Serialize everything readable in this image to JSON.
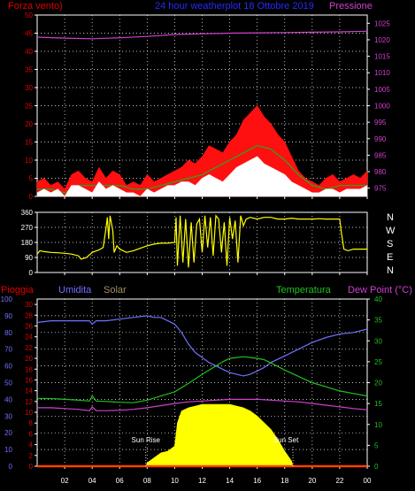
{
  "header": {
    "left_title": "Forza vento)",
    "center_title": "24 hour weatherplot 18 Ottobre 2019",
    "right_title": "Pressione",
    "colors": {
      "left": "#e00000",
      "center": "#2828ff",
      "right": "#d040d0"
    }
  },
  "compass_labels": [
    "N",
    "W",
    "S",
    "E",
    "N"
  ],
  "bottom_header": {
    "pioggia": "Pioggia",
    "umidita": "Umidita",
    "solar": "Solar",
    "temperatura": "Temperatura",
    "dew_point": "Dew Point (°C)",
    "colors": {
      "pioggia": "#e00000",
      "umidita": "#7070ff",
      "solar": "#a09060",
      "temperatura": "#20c020",
      "dew_point": "#d040d0"
    }
  },
  "annotations": {
    "sun_rise": "Sun Rise",
    "sun_set": "Sun Set"
  },
  "chart_data": [
    {
      "type": "line",
      "name_hint": "wind",
      "x_ticks": [
        "02",
        "04",
        "06",
        "08",
        "10",
        "12",
        "14",
        "16",
        "18",
        "20",
        "22",
        "00"
      ],
      "y_left_ticks": [
        0,
        5,
        10,
        15,
        20,
        25,
        30,
        35,
        40,
        45,
        50
      ],
      "y_right_ticks": [
        975,
        980,
        985,
        990,
        995,
        1000,
        1005,
        1010,
        1015,
        1020,
        1025
      ],
      "ylim_left": [
        0,
        50
      ],
      "ylim_right": [
        972.5,
        1027.5
      ],
      "xlim": [
        0,
        24
      ],
      "series": [
        {
          "name": "Pressione",
          "axis": "right",
          "color": "#d040d0",
          "x": [
            0,
            2,
            4,
            6,
            8,
            10,
            12,
            14,
            16,
            18,
            20,
            22,
            24
          ],
          "values": [
            1020.8,
            1020.5,
            1020.3,
            1020.6,
            1021.0,
            1021.6,
            1021.8,
            1022.0,
            1022.1,
            1022.2,
            1022.3,
            1022.4,
            1022.6
          ]
        },
        {
          "axis": "left",
          "color": "#ff1010",
          "fill": true,
          "x": [
            0,
            0.5,
            1,
            1.5,
            2,
            2.5,
            3,
            3.5,
            4,
            4.5,
            5,
            5.5,
            6,
            6.5,
            7,
            7.5,
            8,
            8.5,
            9,
            9.5,
            10,
            10.5,
            11,
            11.5,
            12,
            12.5,
            13,
            13.5,
            14,
            14.5,
            15,
            15.5,
            16,
            16.5,
            17,
            17.5,
            18,
            18.5,
            19,
            19.5,
            20,
            20.5,
            21,
            21.5,
            22,
            22.5,
            23,
            23.5,
            24
          ],
          "values": [
            4,
            5,
            3,
            4,
            2,
            6,
            7,
            5,
            4,
            8,
            5,
            7,
            6,
            3,
            4,
            3,
            6,
            4,
            5,
            6,
            7,
            8,
            10,
            9,
            11,
            14,
            13,
            12,
            15,
            17,
            21,
            23,
            25,
            22,
            20,
            17,
            15,
            11,
            7,
            5,
            4,
            3,
            5,
            6,
            4,
            5,
            6,
            5,
            7
          ]
        },
        {
          "axis": "left",
          "color": "#22aa22",
          "x": [
            0,
            1,
            2,
            3,
            4,
            5,
            6,
            7,
            8,
            9,
            10,
            11,
            12,
            13,
            14,
            15,
            16,
            17,
            18,
            19,
            20,
            21,
            22,
            23,
            24
          ],
          "values": [
            2,
            2,
            1,
            3,
            3,
            3,
            3,
            2,
            2,
            3,
            4,
            5,
            6,
            8,
            10,
            12,
            14,
            13,
            10,
            6,
            3,
            2,
            3,
            3,
            3
          ]
        },
        {
          "axis": "left",
          "color": "#ffffff",
          "fill": true,
          "x": [
            0,
            0.5,
            1,
            1.5,
            2,
            2.5,
            3,
            3.5,
            4,
            4.5,
            5,
            5.5,
            6,
            6.5,
            7,
            7.5,
            8,
            8.5,
            9,
            9.5,
            10,
            10.5,
            11,
            11.5,
            12,
            12.5,
            13,
            13.5,
            14,
            14.5,
            15,
            15.5,
            16,
            16.5,
            17,
            17.5,
            18,
            18.5,
            19,
            19.5,
            20,
            20.5,
            21,
            21.5,
            22,
            22.5,
            23,
            23.5,
            24
          ],
          "values": [
            1,
            2,
            1,
            2,
            0,
            3,
            3,
            2,
            1,
            4,
            2,
            3,
            2,
            1,
            1,
            0,
            2,
            1,
            2,
            3,
            3,
            4,
            4,
            3,
            5,
            6,
            5,
            4,
            6,
            8,
            9,
            10,
            11,
            9,
            8,
            7,
            6,
            4,
            3,
            2,
            1,
            1,
            2,
            2,
            1,
            2,
            2,
            2,
            3
          ]
        }
      ]
    },
    {
      "type": "line",
      "name_hint": "wind_direction",
      "x_ticks": [
        "02",
        "04",
        "06",
        "08",
        "10",
        "12",
        "14",
        "16",
        "18",
        "20",
        "22",
        "00"
      ],
      "y_ticks": [
        0,
        90,
        180,
        270,
        360
      ],
      "ylim": [
        0,
        360
      ],
      "xlim": [
        0,
        24
      ],
      "series": [
        {
          "color": "#ffff00",
          "x": [
            0,
            0.2,
            0.5,
            1,
            1.5,
            2,
            2.5,
            3,
            3.2,
            3.6,
            4,
            4.5,
            4.8,
            5,
            5.1,
            5.2,
            5.3,
            5.5,
            5.6,
            5.8,
            6,
            6.5,
            7,
            7.5,
            8,
            8.5,
            9,
            9.5,
            10,
            10.1,
            10.2,
            10.4,
            10.6,
            10.8,
            11,
            11.2,
            11.4,
            11.6,
            11.8,
            12,
            12.2,
            12.4,
            12.6,
            12.8,
            13,
            13.2,
            13.4,
            13.6,
            13.8,
            14,
            14.2,
            14.4,
            14.6,
            14.8,
            15,
            15.2,
            15.5,
            16,
            16.5,
            17,
            17.5,
            18,
            18.5,
            19,
            19.5,
            20,
            20.5,
            21,
            21.5,
            22,
            22.1,
            22.3,
            22.6,
            23,
            23.5,
            24
          ],
          "values": [
            110,
            130,
            125,
            120,
            118,
            115,
            110,
            100,
            80,
            90,
            120,
            135,
            150,
            260,
            330,
            200,
            340,
            250,
            120,
            160,
            140,
            120,
            130,
            145,
            160,
            170,
            175,
            175,
            180,
            330,
            40,
            340,
            60,
            320,
            30,
            300,
            60,
            290,
            320,
            120,
            340,
            150,
            330,
            100,
            340,
            320,
            120,
            300,
            40,
            330,
            200,
            310,
            60,
            340,
            280,
            320,
            330,
            320,
            330,
            330,
            320,
            320,
            325,
            320,
            320,
            320,
            322,
            320,
            320,
            320,
            250,
            140,
            130,
            140,
            140,
            140
          ]
        }
      ]
    },
    {
      "type": "area",
      "name_hint": "temperature_humidity_solar",
      "x_ticks": [
        "02",
        "04",
        "06",
        "08",
        "10",
        "12",
        "14",
        "16",
        "18",
        "20",
        "22",
        "00"
      ],
      "y_humidity_ticks": [
        0,
        10,
        20,
        30,
        40,
        50,
        60,
        70,
        80,
        90,
        100
      ],
      "y_rain_ticks": [
        0,
        2,
        4,
        6,
        8,
        10,
        12,
        14,
        16,
        18,
        20,
        22,
        24,
        26,
        28,
        30
      ],
      "y_right_ticks": [
        0,
        5,
        10,
        15,
        20,
        25,
        30,
        35,
        40
      ],
      "ylim_humidity": [
        0,
        100
      ],
      "ylim_right": [
        0,
        40
      ],
      "xlim": [
        0,
        24
      ],
      "sun_rise_x": 7.9,
      "sun_set_x": 18.6,
      "series": [
        {
          "name": "Umidita",
          "axis": "humidity",
          "color": "#7070ff",
          "x": [
            0,
            1,
            2,
            3,
            3.8,
            4,
            4.3,
            5,
            6,
            7,
            8,
            8.5,
            9,
            9.5,
            10,
            10.5,
            11,
            11.5,
            12,
            12.5,
            13,
            13.5,
            14,
            14.5,
            15,
            15.5,
            16,
            16.5,
            17,
            18,
            19,
            20,
            21,
            22,
            23,
            24
          ],
          "values": [
            86,
            87,
            87,
            87,
            87,
            85,
            87,
            87,
            88,
            89,
            90,
            89,
            89,
            87,
            85,
            80,
            73,
            68,
            65,
            62,
            60,
            58,
            56,
            55,
            54,
            55,
            57,
            59,
            62,
            66,
            70,
            74,
            77,
            79,
            80,
            82
          ]
        },
        {
          "name": "Solar",
          "axis": "humidity",
          "color": "#ffff00",
          "fill": true,
          "x": [
            0,
            7.9,
            8,
            8.5,
            9,
            9.5,
            10,
            10.2,
            10.5,
            11,
            11.5,
            12,
            12.5,
            13,
            13.5,
            14,
            14.5,
            15,
            15.5,
            16,
            16.5,
            17,
            17.5,
            18,
            18.5,
            18.6,
            24
          ],
          "values": [
            0,
            0,
            2,
            5,
            8,
            9,
            12,
            26,
            33,
            35,
            36,
            37,
            37,
            37,
            37,
            37,
            36,
            35,
            33,
            30,
            26,
            22,
            16,
            9,
            3,
            0,
            0
          ]
        },
        {
          "name": "Temperatura",
          "axis": "right",
          "color": "#20c020",
          "x": [
            0,
            1,
            2,
            3,
            3.8,
            4,
            4.3,
            5,
            6,
            7,
            8,
            9,
            10,
            11,
            12,
            13,
            13.5,
            14,
            14.5,
            15,
            15.5,
            16,
            16.5,
            17,
            18,
            19,
            20,
            21,
            22,
            23,
            24
          ],
          "values": [
            16.2,
            16.2,
            16.0,
            15.8,
            15.6,
            16.8,
            15.6,
            15.5,
            15.3,
            15.2,
            15.8,
            16.8,
            17.8,
            19.8,
            22.0,
            24.0,
            25.0,
            25.8,
            26.0,
            26.2,
            26.0,
            25.8,
            25.5,
            24.7,
            23.0,
            21.5,
            20.0,
            19.0,
            18.0,
            17.4,
            16.8
          ]
        },
        {
          "name": "Dew Point",
          "axis": "right",
          "color": "#d040d0",
          "x": [
            0,
            1,
            2,
            3,
            3.8,
            4,
            4.3,
            5,
            6,
            7,
            8,
            9,
            10,
            11,
            12,
            13,
            14,
            15,
            16,
            17,
            18,
            19,
            20,
            21,
            22,
            23,
            24
          ],
          "values": [
            14.0,
            14.0,
            13.8,
            13.6,
            13.3,
            14.2,
            13.3,
            13.3,
            13.4,
            13.6,
            14.0,
            14.5,
            15.0,
            15.4,
            15.6,
            15.8,
            16.0,
            16.0,
            16.0,
            15.8,
            15.6,
            15.4,
            15.0,
            14.6,
            14.2,
            13.8,
            13.5
          ]
        },
        {
          "name": "Pioggia",
          "axis": "rain",
          "color": "#ff4000",
          "x": [
            0,
            24
          ],
          "values": [
            0,
            0
          ]
        }
      ]
    }
  ]
}
